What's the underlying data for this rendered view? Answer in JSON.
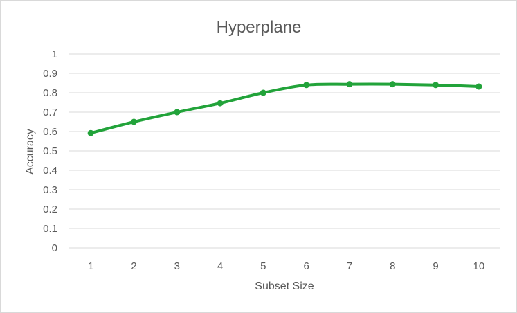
{
  "chart_data": {
    "type": "line",
    "title": "Hyperplane",
    "xlabel": "Subset Size",
    "ylabel": "Accuracy",
    "categories": [
      "1",
      "2",
      "3",
      "4",
      "5",
      "6",
      "7",
      "8",
      "9",
      "10"
    ],
    "yticks": [
      "0",
      "0.1",
      "0.2",
      "0.3",
      "0.4",
      "0.5",
      "0.6",
      "0.7",
      "0.8",
      "0.9",
      "1"
    ],
    "ylim": [
      0,
      1
    ],
    "grid": true,
    "legend": "none",
    "series": [
      {
        "values": [
          0.592,
          0.65,
          0.7,
          0.746,
          0.8,
          0.84,
          0.844,
          0.844,
          0.84,
          0.832
        ],
        "color": "#22a33a"
      }
    ]
  }
}
